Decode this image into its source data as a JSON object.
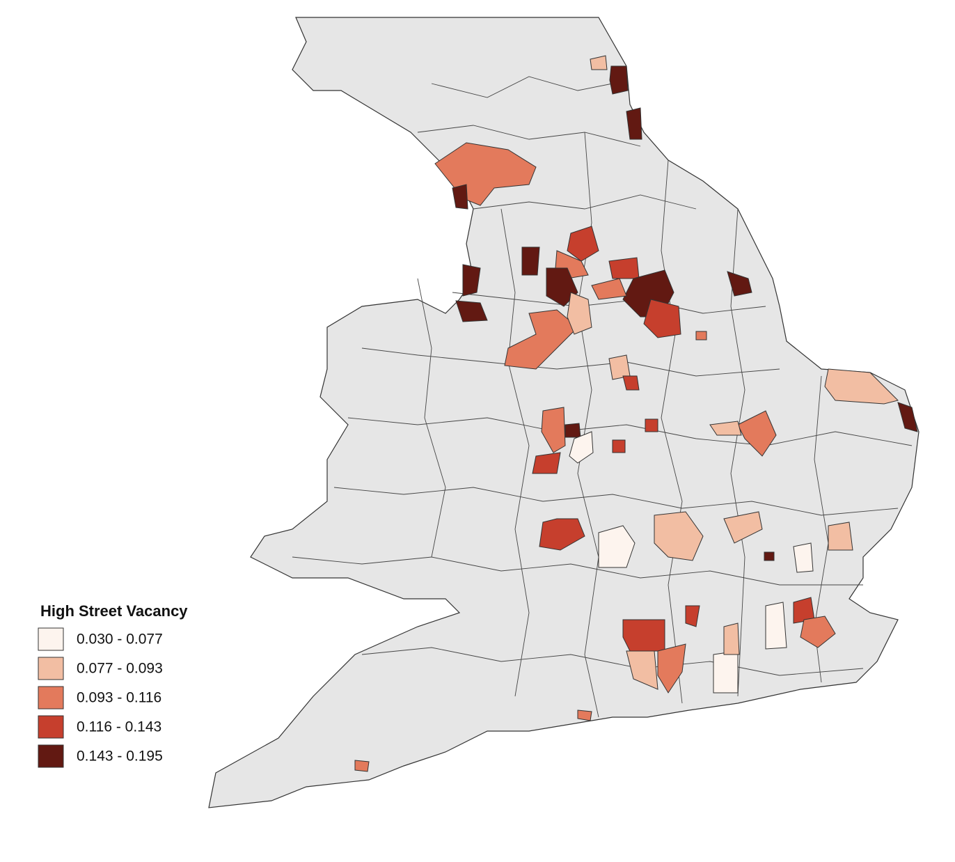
{
  "legend": {
    "title": "High Street Vacancy",
    "items": [
      {
        "label": "0.030 - 0.077",
        "color": "#fdf4ee"
      },
      {
        "label": "0.077 - 0.093",
        "color": "#f2bea3"
      },
      {
        "label": "0.093 - 0.116",
        "color": "#e37a5c"
      },
      {
        "label": "0.116 - 0.143",
        "color": "#c63f2d"
      },
      {
        "label": "0.143 - 0.195",
        "color": "#621912"
      }
    ]
  }
}
